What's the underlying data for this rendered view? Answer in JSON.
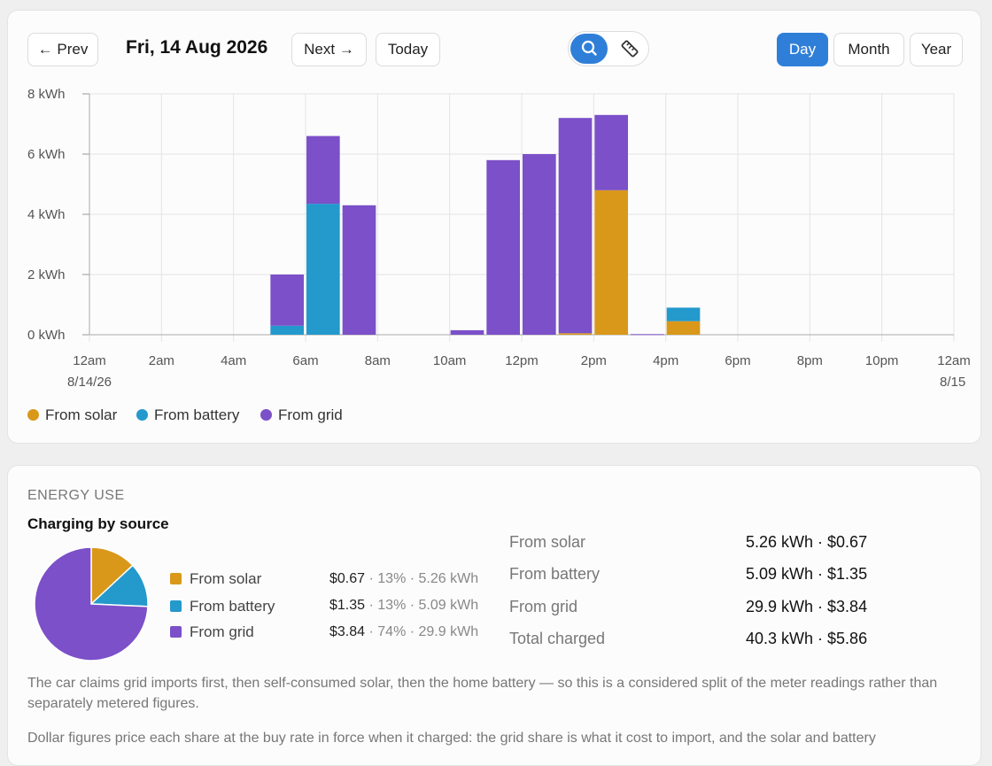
{
  "header": {
    "prev_label": "← Prev",
    "date_title": "Fri, 14 Aug 2026",
    "next_label": "Next →",
    "today_label": "Today",
    "search_icon": "search-icon",
    "measure_icon": "ruler-icon",
    "periods": [
      "Day",
      "Month",
      "Year"
    ],
    "active_period": "Day"
  },
  "colors": {
    "solar": "#d9981a",
    "battery": "#2399cc",
    "grid": "#7b50c8",
    "accent": "#2f7fd9"
  },
  "chart_data": {
    "type": "bar",
    "stacked": true,
    "y_unit": "kWh",
    "ylim": [
      0,
      8
    ],
    "y_ticks": [
      "0 kWh",
      "2 kWh",
      "4 kWh",
      "6 kWh",
      "8 kWh"
    ],
    "x_ticks": [
      "12am",
      "2am",
      "4am",
      "6am",
      "8am",
      "10am",
      "12pm",
      "2pm",
      "4pm",
      "6pm",
      "8pm",
      "10pm",
      "12am"
    ],
    "x_subticks": [
      "8/14/26",
      "8/15"
    ],
    "categories": [
      "5am",
      "6am",
      "7am",
      "10am",
      "11am",
      "12pm",
      "1pm",
      "2pm",
      "3pm",
      "4pm"
    ],
    "hours": [
      5,
      6,
      7,
      10,
      11,
      12,
      13,
      14,
      15,
      16
    ],
    "series": [
      {
        "name": "From solar",
        "values": [
          0,
          0,
          0,
          0,
          0,
          0,
          0.05,
          4.8,
          0,
          0.45
        ]
      },
      {
        "name": "From battery",
        "values": [
          0.3,
          4.35,
          0,
          0,
          0,
          0,
          0,
          0,
          0,
          0.45
        ]
      },
      {
        "name": "From grid",
        "values": [
          1.7,
          2.25,
          4.3,
          0.15,
          5.8,
          6.0,
          7.15,
          2.5,
          0.02,
          0
        ]
      }
    ],
    "legend": [
      "From solar",
      "From battery",
      "From grid"
    ],
    "legend_position": "bottom-left",
    "grid": true
  },
  "energy_use": {
    "section_label": "ENERGY USE",
    "title": "Charging by source",
    "pie": {
      "type": "pie",
      "slices": [
        {
          "name": "From solar",
          "value": 5.26,
          "percent": 13,
          "cost": "$0.67",
          "detail": "13% · 5.26 kWh"
        },
        {
          "name": "From battery",
          "value": 5.09,
          "percent": 13,
          "cost": "$1.35",
          "detail": "13% · 5.09 kWh"
        },
        {
          "name": "From grid",
          "value": 29.9,
          "percent": 74,
          "cost": "$3.84",
          "detail": "74% · 29.9 kWh"
        }
      ]
    },
    "summary": [
      {
        "label": "From solar",
        "value": "5.26 kWh · $0.67"
      },
      {
        "label": "From battery",
        "value": "5.09 kWh · $1.35"
      },
      {
        "label": "From grid",
        "value": "29.9 kWh · $3.84"
      },
      {
        "label": "Total charged",
        "value": "40.3 kWh · $5.86"
      }
    ],
    "notes": [
      "The car claims grid imports first, then self-consumed solar, then the home battery — so this is a considered split of the meter readings rather than separately metered figures.",
      "Dollar figures price each share at the buy rate in force when it charged: the grid share is what it cost to import, and the solar and battery"
    ]
  }
}
